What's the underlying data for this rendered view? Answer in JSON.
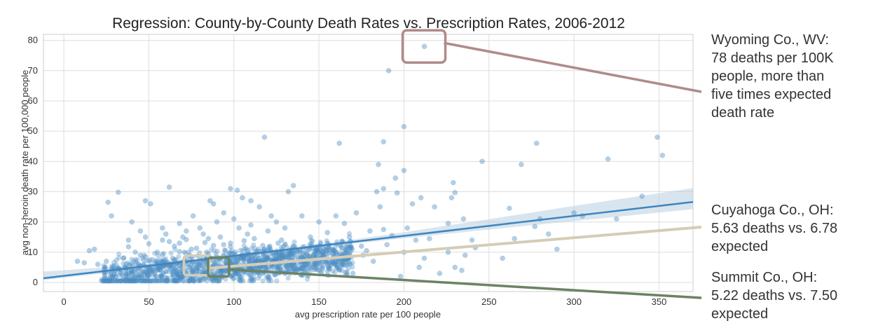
{
  "chart_data": {
    "type": "scatter",
    "title": "Regression: County-by-County Death Rates vs. Prescription Rates, 2006-2012",
    "xlabel": "avg prescription rate per 100 people",
    "ylabel": "avg non-heroin death rate per 100,000 people",
    "xlim": [
      -12,
      370
    ],
    "ylim": [
      -3,
      82
    ],
    "xticks": [
      0,
      50,
      100,
      150,
      200,
      250,
      300,
      350
    ],
    "yticks": [
      0,
      10,
      20,
      30,
      40,
      50,
      60,
      70,
      80
    ],
    "grid": true,
    "colors": {
      "points": "#4a8cc4",
      "regression": "#3d85c0",
      "confidence_band": "#b9cfe0",
      "wyoming": "#b08a8a",
      "cuyahoga": "#d4cdb5",
      "summit": "#6b8364"
    },
    "regression": {
      "slope": 0.066,
      "intercept": 2.2,
      "ci": [
        [
          -12,
          0.8,
          3.6
        ],
        [
          50,
          4.7,
          6.0
        ],
        [
          100,
          8.1,
          9.0
        ],
        [
          150,
          11.6,
          12.6
        ],
        [
          200,
          14.6,
          16.6
        ],
        [
          250,
          17.5,
          20.9
        ],
        [
          300,
          20.3,
          25.3
        ],
        [
          370,
          24.2,
          31.2
        ]
      ]
    },
    "points": [
      [
        212,
        78
      ],
      [
        191,
        70
      ],
      [
        200,
        51.5
      ],
      [
        118,
        48
      ],
      [
        188,
        46.5
      ],
      [
        162,
        46
      ],
      [
        278,
        46
      ],
      [
        349,
        48
      ],
      [
        352,
        42
      ],
      [
        185,
        39
      ],
      [
        246,
        40
      ],
      [
        269,
        39
      ],
      [
        320,
        40.8
      ],
      [
        200,
        37
      ],
      [
        195,
        34.5
      ],
      [
        229,
        33
      ],
      [
        188,
        31
      ],
      [
        184,
        30
      ],
      [
        196,
        29.6
      ],
      [
        230,
        29.7
      ],
      [
        228,
        28
      ],
      [
        210,
        28
      ],
      [
        205,
        26
      ],
      [
        218,
        25
      ],
      [
        262,
        24.5
      ],
      [
        280,
        21
      ],
      [
        325,
        21
      ],
      [
        277,
        18.5
      ],
      [
        235,
        21
      ],
      [
        226,
        19.5
      ],
      [
        202,
        18
      ],
      [
        188,
        17.5
      ],
      [
        215,
        14.5
      ],
      [
        207,
        14
      ],
      [
        193,
        15.5
      ],
      [
        290,
        11
      ],
      [
        242,
        11.5
      ],
      [
        226,
        10
      ],
      [
        236,
        9
      ],
      [
        230,
        5
      ],
      [
        234,
        4
      ],
      [
        221,
        3
      ],
      [
        209,
        5
      ],
      [
        198,
        2
      ],
      [
        176,
        9
      ],
      [
        170,
        3
      ],
      [
        240,
        14
      ],
      [
        258,
        8
      ],
      [
        265,
        14.5
      ],
      [
        285,
        16
      ],
      [
        300,
        23
      ],
      [
        175,
        12
      ],
      [
        180,
        17
      ],
      [
        165,
        19.5
      ],
      [
        172,
        23
      ],
      [
        160,
        22
      ],
      [
        155,
        16.5
      ],
      [
        168,
        15
      ],
      [
        178,
        10.5
      ],
      [
        182,
        7
      ],
      [
        190,
        12.5
      ],
      [
        200,
        10
      ],
      [
        212,
        8
      ],
      [
        186,
        25
      ],
      [
        305,
        22
      ],
      [
        340,
        28.5
      ],
      [
        32,
        29.8
      ],
      [
        26,
        26.5
      ],
      [
        28,
        22
      ],
      [
        40,
        20
      ],
      [
        48,
        27
      ],
      [
        51,
        26
      ],
      [
        62,
        31.5
      ],
      [
        86,
        27
      ],
      [
        98,
        31
      ],
      [
        102,
        30.5
      ],
      [
        110,
        27
      ],
      [
        122,
        22
      ],
      [
        132,
        30
      ],
      [
        135,
        32
      ],
      [
        105,
        28
      ],
      [
        115,
        25
      ],
      [
        125,
        20
      ],
      [
        94,
        23
      ],
      [
        88,
        26
      ],
      [
        76,
        22
      ],
      [
        68,
        19.5
      ],
      [
        58,
        18
      ],
      [
        45,
        17
      ],
      [
        38,
        14
      ],
      [
        60,
        16
      ],
      [
        70,
        15
      ],
      [
        80,
        18
      ],
      [
        90,
        20
      ],
      [
        100,
        21
      ],
      [
        110,
        19
      ],
      [
        120,
        17
      ],
      [
        130,
        18
      ],
      [
        140,
        22
      ],
      [
        150,
        20
      ],
      [
        145,
        15
      ],
      [
        155,
        13
      ],
      [
        160,
        10
      ],
      [
        135,
        12
      ],
      [
        128,
        14
      ],
      [
        108,
        16
      ],
      [
        98,
        13
      ],
      [
        85,
        14.5
      ],
      [
        75,
        11
      ],
      [
        65,
        12
      ],
      [
        55,
        10
      ],
      [
        45,
        9
      ],
      [
        35,
        8
      ],
      [
        25,
        7
      ],
      [
        18,
        11
      ],
      [
        15,
        10.5
      ],
      [
        20,
        6
      ],
      [
        12,
        6.5
      ],
      [
        8,
        7
      ],
      [
        30,
        4
      ],
      [
        40,
        3
      ],
      [
        50,
        2.5
      ],
      [
        60,
        1.5
      ],
      [
        70,
        2
      ],
      [
        80,
        1
      ],
      [
        90,
        2
      ],
      [
        100,
        1.5
      ],
      [
        110,
        1
      ],
      [
        120,
        2
      ],
      [
        130,
        3
      ],
      [
        140,
        2.5
      ],
      [
        150,
        4
      ],
      [
        38,
        11.8
      ],
      [
        50,
        12.8
      ],
      [
        62,
        13.5
      ],
      [
        72,
        14.2
      ],
      [
        83,
        13.2
      ],
      [
        94,
        12.5
      ],
      [
        106,
        13.8
      ],
      [
        117,
        12.2
      ],
      [
        128,
        11.5
      ],
      [
        139,
        10.8
      ],
      [
        150,
        12
      ],
      [
        158,
        11
      ],
      [
        45,
        5.5
      ],
      [
        55,
        6.5
      ],
      [
        65,
        7.5
      ],
      [
        75,
        8.5
      ],
      [
        85,
        9.5
      ],
      [
        95,
        10.5
      ],
      [
        105,
        9
      ],
      [
        115,
        8
      ],
      [
        125,
        7
      ],
      [
        135,
        6
      ],
      [
        145,
        5
      ],
      [
        48,
        8.5
      ],
      [
        58,
        9.2
      ],
      [
        68,
        10.2
      ],
      [
        78,
        11.3
      ],
      [
        88,
        12.2
      ],
      [
        98,
        11.8
      ],
      [
        108,
        10.6
      ],
      [
        118,
        9.8
      ],
      [
        128,
        8.8
      ],
      [
        138,
        7.8
      ],
      [
        148,
        8.3
      ],
      [
        52,
        4
      ],
      [
        62,
        5
      ],
      [
        72,
        6
      ],
      [
        82,
        7
      ],
      [
        92,
        8
      ],
      [
        102,
        7.5
      ],
      [
        112,
        6.5
      ],
      [
        122,
        5.5
      ],
      [
        132,
        4.5
      ],
      [
        142,
        3.5
      ],
      [
        44,
        6
      ],
      [
        54,
        7
      ],
      [
        64,
        8
      ],
      [
        74,
        9
      ],
      [
        84,
        10
      ],
      [
        94,
        9
      ],
      [
        104,
        8
      ],
      [
        114,
        7
      ],
      [
        124,
        9
      ],
      [
        134,
        10
      ],
      [
        144,
        11
      ],
      [
        154,
        9.5
      ],
      [
        36,
        5
      ],
      [
        42,
        10
      ],
      [
        66,
        3.5
      ],
      [
        78,
        4.5
      ],
      [
        88,
        5.5
      ],
      [
        98,
        6.5
      ],
      [
        110,
        5
      ],
      [
        120,
        4
      ],
      [
        130,
        6
      ],
      [
        140,
        8
      ],
      [
        70,
        5.5
      ],
      [
        80,
        6.5
      ],
      [
        90,
        7.5
      ],
      [
        100,
        8.5
      ],
      [
        60,
        6
      ],
      [
        96,
        4
      ],
      [
        86,
        3
      ],
      [
        76,
        3.5
      ],
      [
        118,
        11
      ],
      [
        126,
        13
      ],
      [
        92,
        15
      ],
      [
        82,
        16
      ],
      [
        72,
        17
      ],
      [
        112,
        14.5
      ],
      [
        103,
        18
      ],
      [
        68,
        13
      ],
      [
        58,
        14
      ],
      [
        48,
        15
      ]
    ]
  },
  "callouts": {
    "wyoming": [
      "Wyoming Co., WV:",
      "78 deaths per 100K",
      "people, more than",
      "five times expected",
      "death rate"
    ],
    "cuyahoga": [
      "Cuyahoga Co., OH:",
      "5.63 deaths vs. 6.78",
      "expected"
    ],
    "summit": [
      "Summit Co., OH:",
      "5.22 deaths vs. 7.50",
      "expected"
    ]
  },
  "highlights": {
    "wyoming": {
      "x": 212,
      "y": 78
    },
    "cuyahoga": {
      "x": 78,
      "y": 5.63
    },
    "summit": {
      "x": 91,
      "y": 5.22
    }
  }
}
